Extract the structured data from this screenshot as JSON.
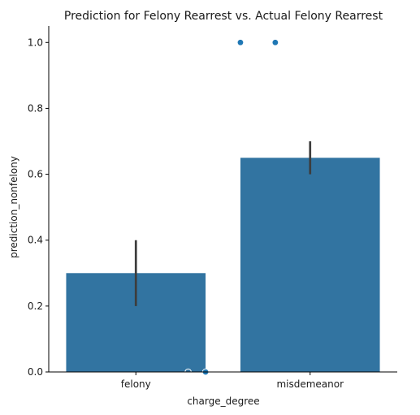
{
  "chart_data": {
    "type": "bar",
    "title": "Prediction for Felony Rearrest vs. Actual Felony Rearrest",
    "xlabel": "charge_degree",
    "ylabel": "prediction_nonfelony",
    "categories": [
      "felony",
      "misdemeanor"
    ],
    "values": [
      0.3,
      0.65
    ],
    "error_bars": [
      {
        "low": 0.2,
        "high": 0.4
      },
      {
        "low": 0.6,
        "high": 0.7
      }
    ],
    "ylim": [
      0,
      1.05
    ],
    "yticks": [
      0.0,
      0.2,
      0.4,
      0.6,
      0.8,
      1.0
    ],
    "ytick_labels": [
      "0.0",
      "0.2",
      "0.4",
      "0.6",
      "0.8",
      "1.0"
    ],
    "points": [
      {
        "category": "felony",
        "offset": 0.3,
        "y": 0.0,
        "style": "hollow"
      },
      {
        "category": "felony",
        "offset": 0.4,
        "y": 0.0,
        "style": "filled"
      },
      {
        "category": "misdemeanor",
        "offset": -0.4,
        "y": 1.0,
        "style": "filled"
      },
      {
        "category": "misdemeanor",
        "offset": -0.2,
        "y": 1.0,
        "style": "filled"
      }
    ],
    "grid": false,
    "colors": {
      "bar": "#3274a1",
      "point": "#1f77b4",
      "errorbar": "#3d3d3d",
      "axis": "#000000"
    }
  }
}
